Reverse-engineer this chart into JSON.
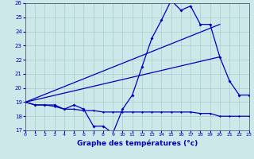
{
  "xlabel": "Graphe des températures (°c)",
  "bg_color": "#cce8e8",
  "grid_color": "#aacccc",
  "line_color": "#0000bb",
  "xlim": [
    0,
    23
  ],
  "ylim": [
    17,
    26
  ],
  "xticks": [
    0,
    1,
    2,
    3,
    4,
    5,
    6,
    7,
    8,
    9,
    10,
    11,
    12,
    13,
    14,
    15,
    16,
    17,
    18,
    19,
    20,
    21,
    22,
    23
  ],
  "yticks": [
    17,
    18,
    19,
    20,
    21,
    22,
    23,
    24,
    25,
    26
  ],
  "line1_x": [
    0,
    1,
    2,
    3,
    4,
    5,
    6,
    7,
    8,
    9,
    10,
    11,
    12,
    13,
    14,
    15,
    16,
    17,
    18,
    19,
    20,
    21,
    22,
    23
  ],
  "line1_y": [
    19.0,
    18.8,
    18.8,
    18.8,
    18.5,
    18.8,
    18.5,
    17.3,
    17.3,
    16.8,
    18.5,
    19.5,
    21.5,
    23.5,
    24.8,
    26.2,
    25.5,
    25.8,
    24.5,
    24.5,
    22.2,
    20.5,
    19.5,
    19.5
  ],
  "line2_x": [
    0,
    20
  ],
  "line2_y": [
    19.0,
    24.5
  ],
  "line3_x": [
    0,
    20
  ],
  "line3_y": [
    19.0,
    22.2
  ],
  "line4_x": [
    0,
    1,
    2,
    3,
    4,
    5,
    6,
    7,
    8,
    9,
    10,
    11,
    12,
    13,
    14,
    15,
    16,
    17,
    18,
    19,
    20,
    21,
    22,
    23
  ],
  "line4_y": [
    19.0,
    18.8,
    18.8,
    18.7,
    18.5,
    18.5,
    18.4,
    18.4,
    18.3,
    18.3,
    18.3,
    18.3,
    18.3,
    18.3,
    18.3,
    18.3,
    18.3,
    18.3,
    18.2,
    18.2,
    18.0,
    18.0,
    18.0,
    18.0
  ]
}
